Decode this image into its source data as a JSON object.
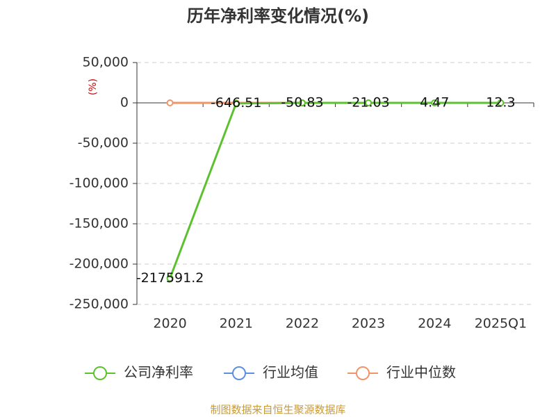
{
  "chart_data": {
    "type": "line",
    "title": "历年净利率变化情况(%)",
    "y_label": "(%)",
    "categories": [
      "2020",
      "2021",
      "2022",
      "2023",
      "2024",
      "2025Q1"
    ],
    "series": [
      {
        "name": "公司净利率",
        "color": "#5cc12e",
        "values": [
          -217591.2,
          -646.51,
          -50.83,
          -21.03,
          4.47,
          12.3
        ],
        "data_labels": true
      },
      {
        "name": "行业均值",
        "color": "#5b8fe0",
        "values": [
          null,
          null,
          null,
          null,
          null,
          null
        ]
      },
      {
        "name": "行业中位数",
        "color": "#f0956a",
        "values": [
          0,
          0,
          0,
          0,
          null,
          null
        ]
      }
    ],
    "ylim": [
      -250000,
      50000
    ],
    "yticks": [
      {
        "value": 50000,
        "label": "50,000"
      },
      0,
      {
        "value": -50000,
        "label": "-50,000"
      },
      {
        "value": -100000,
        "label": "-100,000"
      },
      {
        "value": -150000,
        "label": "-150,000"
      },
      {
        "value": -200000,
        "label": "-200,000"
      },
      {
        "value": -250000,
        "label": "-250,000"
      }
    ],
    "grid": true,
    "legend": "bottom",
    "source": "制图数据来自恒生聚源数据库"
  }
}
